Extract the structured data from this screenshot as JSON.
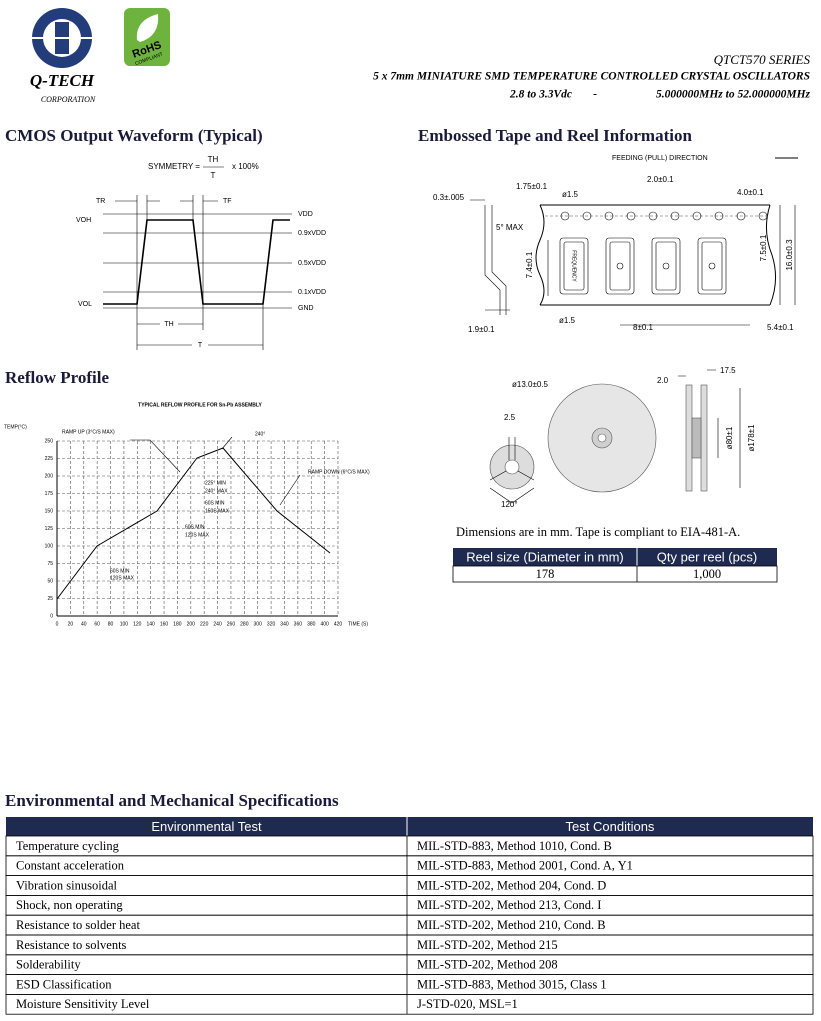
{
  "header": {
    "company": "Q-TECH",
    "company_sub": "CORPORATION",
    "rohs": "RoHS",
    "rohs_sub": "COMPLIANT",
    "series": "QTCT570 SERIES",
    "description": "5 x 7mm MINIATURE SMD TEMPERATURE CONTROLLED CRYSTAL OSCILLATORS",
    "voltage": "2.8 to 3.3Vdc",
    "dash": "-",
    "frequency": "5.000000MHz  to  52.000000MHz"
  },
  "waveform": {
    "title": "CMOS Output Waveform (Typical)",
    "symmetry": "SYMMETRY =",
    "numerator": "TH",
    "denominator": "T",
    "factor": "x 100%",
    "tr": "TR",
    "tf": "TF",
    "voh": "VOH",
    "vol": "VOL",
    "levels": [
      "VDD",
      "0.9xVDD",
      "0.5xVDD",
      "0.1xVDD",
      "GND"
    ],
    "th": "TH",
    "t": "T"
  },
  "reflow": {
    "title": "Reflow Profile",
    "chart_title": "TYPICAL REFLOW PROFILE FOR Sn-Pb ASSEMBLY",
    "y_label": "TEMP(°C)",
    "x_label": "TIME (S)",
    "yticks": [
      0,
      25,
      50,
      75,
      100,
      125,
      150,
      175,
      200,
      225,
      250
    ],
    "xticks": [
      0,
      20,
      40,
      60,
      80,
      100,
      120,
      140,
      160,
      180,
      200,
      220,
      240,
      260,
      280,
      300,
      320,
      340,
      360,
      380,
      400,
      420
    ],
    "ramp_up": "RAMP UP (3°C/S MAX)",
    "peak": "240°",
    "ramp_down": "RAMP DOWN (6°C/S MAX)",
    "peak_min": "225° MIN",
    "peak_max": "240° MAX",
    "t1_min": "60S MIN",
    "t1_max": "150S MAX",
    "t2_min": "60S MIN",
    "t2_max": "120S MAX",
    "t3_min": "60S MIN",
    "t3_max": "120S MAX"
  },
  "tape": {
    "title": "Embossed Tape and Reel Information",
    "feed": "FEEDING (PULL) DIRECTION",
    "thickness": "0.3±.005",
    "edge": "1.75±0.1",
    "hole": "ø1.5",
    "pitch_hole_to_pocket": "2.0±0.1",
    "hole_pitch": "4.0±0.1",
    "angle": "5° MAX",
    "pocket_length": "7.4±0.1",
    "row_offset": "7.5±0.1",
    "tape_width": "16.0±0.3",
    "pocket_hole": "ø1.5",
    "pocket_pitch": "8±0.1",
    "pocket_width": "5.4±0.1",
    "depth": "1.9±0.1",
    "marking": "FREQUENCY",
    "reel_hub": "ø13.0±0.5",
    "slot": "2.5",
    "slot_angle": "120°",
    "flange": "2.0",
    "reel_width": "17.5",
    "hub_dia": "ø80±1",
    "reel_dia": "ø178±1",
    "note": "Dimensions are in mm.  Tape is compliant to EIA-481-A.",
    "table": {
      "header": [
        "Reel size (Diameter in mm)",
        "Qty per reel (pcs)"
      ],
      "rows": [
        [
          "178",
          "1,000"
        ]
      ]
    }
  },
  "environment": {
    "title": "Environmental and Mechanical Specifications",
    "header": [
      "Environmental Test",
      "Test Conditions"
    ],
    "rows": [
      [
        "Temperature cycling",
        "MIL-STD-883, Method 1010, Cond. B"
      ],
      [
        "Constant acceleration",
        "MIL-STD-883, Method 2001, Cond. A, Y1"
      ],
      [
        "Vibration sinusoidal",
        "MIL-STD-202, Method 204, Cond. D"
      ],
      [
        "Shock, non operating",
        "MIL-STD-202, Method 213, Cond. I"
      ],
      [
        "Resistance to solder heat",
        "MIL-STD-202, Method 210, Cond. B"
      ],
      [
        "Resistance to solvents",
        "MIL-STD-202, Method 215"
      ],
      [
        "Solderability",
        "MIL-STD-202, Method 208"
      ],
      [
        "ESD Classification",
        "MIL-STD-883, Method 3015, Class 1"
      ],
      [
        "Moisture Sensitivity Level",
        "J-STD-020, MSL=1"
      ]
    ]
  }
}
